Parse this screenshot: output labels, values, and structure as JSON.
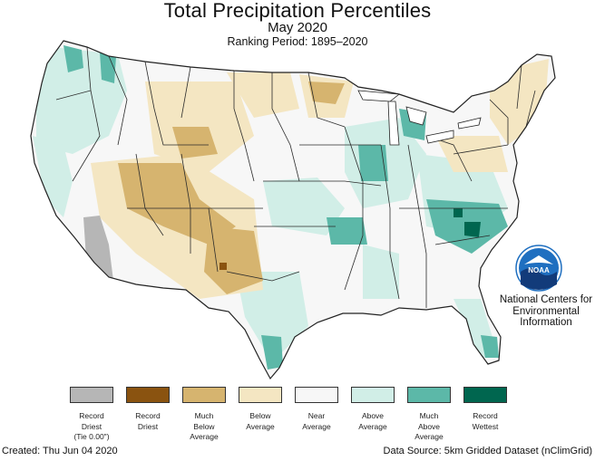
{
  "header": {
    "title": "Total Precipitation Percentiles",
    "subtitle": "May 2020",
    "ranking_period": "Ranking Period: 1895–2020"
  },
  "organization": {
    "logo_text": "NOAA",
    "line1": "National Centers for",
    "line2": "Environmental",
    "line3": "Information"
  },
  "legend": [
    {
      "lines": [
        "Record",
        "Driest",
        "(Tie 0.00\")"
      ],
      "color": "#b6b6b6"
    },
    {
      "lines": [
        "Record",
        "Driest"
      ],
      "color": "#8a5310"
    },
    {
      "lines": [
        "Much",
        "Below",
        "Average"
      ],
      "color": "#d6b46f"
    },
    {
      "lines": [
        "Below",
        "Average"
      ],
      "color": "#f4e6c2"
    },
    {
      "lines": [
        "Near",
        "Average"
      ],
      "color": "#f7f7f7"
    },
    {
      "lines": [
        "Above",
        "Average"
      ],
      "color": "#d1eee7"
    },
    {
      "lines": [
        "Much",
        "Above",
        "Average"
      ],
      "color": "#5cb8a8"
    },
    {
      "lines": [
        "Record",
        "Wettest"
      ],
      "color": "#00664f"
    }
  ],
  "footer": {
    "created": "Created: Thu Jun 04 2020",
    "source": "Data Source: 5km Gridded Dataset (nClimGrid)"
  },
  "colors": {
    "border": "#222222",
    "near_average": "#f7f7f7",
    "noaa_blue": "#1f6fc0",
    "noaa_navy": "#123b7a"
  }
}
